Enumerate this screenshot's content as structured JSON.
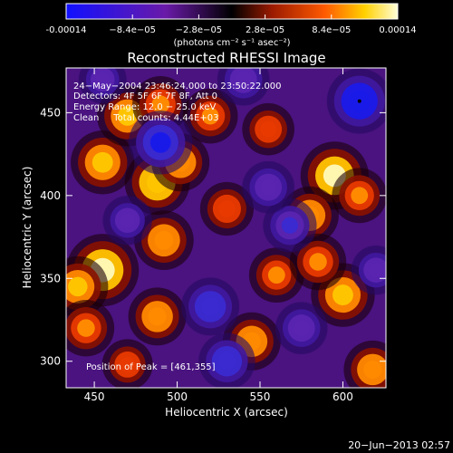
{
  "colorbar": {
    "tick_labels": [
      "-0.00014",
      "−8.4e−05",
      "−2.8e−05",
      "2.8e−05",
      "8.4e−05",
      "0.00014"
    ],
    "tick_values": [
      -0.00014,
      -8.4e-05,
      -2.8e-05,
      2.8e-05,
      8.4e-05,
      0.00014
    ],
    "unit_label": "(photons cm⁻² s⁻¹ asec⁻²)",
    "colormap": [
      "#1010ff",
      "#6a1aa8",
      "#000000",
      "#9a1a00",
      "#ff5a00",
      "#ffd000",
      "#ffffd8"
    ]
  },
  "annotations": {
    "line1": "24−May−2004 23:46:24.000 to 23:50:22.000",
    "line2": "Detectors: 4F 5F 6F 7F 8F, Att 0",
    "line3": "Energy Range: 12.0 − 25.0 keV",
    "line4": "Clean     Total counts: 4.44E+03",
    "peak": "Position of Peak = [461,355]"
  },
  "footer": {
    "date": "20−Jun−2013 02:57"
  },
  "chart_data": {
    "type": "heatmap",
    "title": "Reconstructed RHESSI Image",
    "xlabel": "Heliocentric X (arcsec)",
    "ylabel": "Heliocentric Y (arcsec)",
    "xlim": [
      433,
      626
    ],
    "ylim": [
      284,
      477
    ],
    "x_ticks": [
      450,
      500,
      550,
      600
    ],
    "y_ticks": [
      300,
      350,
      400,
      450
    ],
    "peak": [
      461,
      355
    ],
    "blobs": [
      {
        "x": 455,
        "y": 355,
        "v": 1.0
      },
      {
        "x": 440,
        "y": 345,
        "v": 0.6
      },
      {
        "x": 445,
        "y": 320,
        "v": 0.45
      },
      {
        "x": 455,
        "y": 420,
        "v": 0.7
      },
      {
        "x": 470,
        "y": 448,
        "v": 0.6
      },
      {
        "x": 490,
        "y": 455,
        "v": 0.45
      },
      {
        "x": 488,
        "y": 408,
        "v": 0.75
      },
      {
        "x": 502,
        "y": 420,
        "v": 0.5
      },
      {
        "x": 492,
        "y": 373,
        "v": 0.55
      },
      {
        "x": 520,
        "y": 448,
        "v": 0.4
      },
      {
        "x": 530,
        "y": 392,
        "v": 0.35
      },
      {
        "x": 488,
        "y": 327,
        "v": 0.5
      },
      {
        "x": 470,
        "y": 298,
        "v": 0.25
      },
      {
        "x": 545,
        "y": 312,
        "v": 0.5
      },
      {
        "x": 560,
        "y": 352,
        "v": 0.4
      },
      {
        "x": 595,
        "y": 412,
        "v": 0.85
      },
      {
        "x": 580,
        "y": 388,
        "v": 0.5
      },
      {
        "x": 610,
        "y": 400,
        "v": 0.4
      },
      {
        "x": 600,
        "y": 340,
        "v": 0.7
      },
      {
        "x": 585,
        "y": 360,
        "v": 0.45
      },
      {
        "x": 618,
        "y": 295,
        "v": 0.5
      },
      {
        "x": 555,
        "y": 440,
        "v": 0.3
      },
      {
        "x": 490,
        "y": 432,
        "v": -0.7
      },
      {
        "x": 610,
        "y": 457,
        "v": -0.75
      },
      {
        "x": 520,
        "y": 333,
        "v": -0.5
      },
      {
        "x": 530,
        "y": 300,
        "v": -0.45
      },
      {
        "x": 568,
        "y": 382,
        "v": -0.35
      },
      {
        "x": 555,
        "y": 405,
        "v": -0.3
      },
      {
        "x": 540,
        "y": 470,
        "v": -0.3
      },
      {
        "x": 575,
        "y": 320,
        "v": -0.3
      },
      {
        "x": 470,
        "y": 385,
        "v": -0.2
      },
      {
        "x": 620,
        "y": 355,
        "v": -0.2
      },
      {
        "x": 455,
        "y": 470,
        "v": -0.15
      }
    ]
  }
}
